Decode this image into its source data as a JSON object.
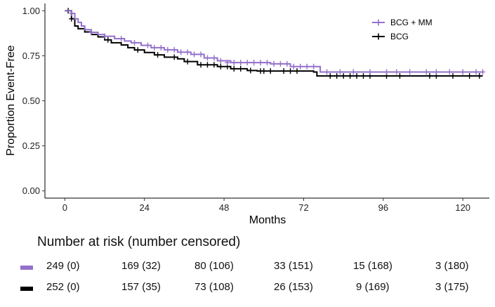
{
  "chart_data": {
    "type": "line",
    "subtype": "kaplan-meier",
    "ylabel": "Proportion Event-Free",
    "xlabel": "Months",
    "xlim": [
      -6,
      128
    ],
    "ylim": [
      -0.04,
      1.04
    ],
    "xticks": [
      0,
      24,
      48,
      72,
      96,
      120
    ],
    "xtick_labels": [
      "0",
      "24",
      "48",
      "72",
      "96",
      "120"
    ],
    "yticks": [
      0,
      0.25,
      0.5,
      0.75,
      1
    ],
    "ytick_labels": [
      "0.00",
      "0.25",
      "0.50",
      "0.75",
      "1.00"
    ],
    "grid": false,
    "legend_position": "top-right",
    "series": [
      {
        "name": "BCG + MM",
        "color": "#9370cc",
        "steps": [
          [
            0,
            1.0
          ],
          [
            1.5,
            1.0
          ],
          [
            2,
            0.985
          ],
          [
            3,
            0.955
          ],
          [
            4,
            0.935
          ],
          [
            5,
            0.915
          ],
          [
            6,
            0.895
          ],
          [
            8,
            0.88
          ],
          [
            10,
            0.868
          ],
          [
            12,
            0.858
          ],
          [
            15,
            0.845
          ],
          [
            18,
            0.832
          ],
          [
            20,
            0.822
          ],
          [
            23,
            0.808
          ],
          [
            26,
            0.795
          ],
          [
            30,
            0.783
          ],
          [
            34,
            0.77
          ],
          [
            38,
            0.758
          ],
          [
            42,
            0.738
          ],
          [
            46,
            0.722
          ],
          [
            50,
            0.712
          ],
          [
            62,
            0.705
          ],
          [
            68,
            0.69
          ],
          [
            77,
            0.66
          ],
          [
            126,
            0.66
          ]
        ],
        "censored": [
          [
            2,
            0.985
          ],
          [
            8,
            0.88
          ],
          [
            12,
            0.858
          ],
          [
            17,
            0.845
          ],
          [
            21,
            0.822
          ],
          [
            25,
            0.808
          ],
          [
            27,
            0.795
          ],
          [
            29,
            0.795
          ],
          [
            31,
            0.783
          ],
          [
            33,
            0.783
          ],
          [
            35,
            0.77
          ],
          [
            37,
            0.77
          ],
          [
            39,
            0.758
          ],
          [
            41,
            0.758
          ],
          [
            43,
            0.738
          ],
          [
            45,
            0.738
          ],
          [
            47,
            0.722
          ],
          [
            49,
            0.712
          ],
          [
            51,
            0.712
          ],
          [
            53,
            0.712
          ],
          [
            55,
            0.712
          ],
          [
            57,
            0.712
          ],
          [
            59,
            0.712
          ],
          [
            61,
            0.712
          ],
          [
            63,
            0.705
          ],
          [
            65,
            0.705
          ],
          [
            67,
            0.705
          ],
          [
            69,
            0.69
          ],
          [
            71,
            0.69
          ],
          [
            73,
            0.69
          ],
          [
            75,
            0.69
          ],
          [
            79,
            0.66
          ],
          [
            83,
            0.66
          ],
          [
            87,
            0.66
          ],
          [
            92,
            0.66
          ],
          [
            97,
            0.66
          ],
          [
            100,
            0.66
          ],
          [
            104,
            0.66
          ],
          [
            109,
            0.66
          ],
          [
            112,
            0.66
          ],
          [
            116,
            0.66
          ],
          [
            120,
            0.66
          ],
          [
            124,
            0.66
          ],
          [
            126,
            0.66
          ]
        ]
      },
      {
        "name": "BCG",
        "color": "#000000",
        "steps": [
          [
            0,
            1.0
          ],
          [
            1.5,
            1.0
          ],
          [
            2,
            0.955
          ],
          [
            3,
            0.915
          ],
          [
            4,
            0.9
          ],
          [
            6,
            0.882
          ],
          [
            8,
            0.868
          ],
          [
            10,
            0.855
          ],
          [
            12,
            0.838
          ],
          [
            14,
            0.822
          ],
          [
            17,
            0.81
          ],
          [
            19,
            0.795
          ],
          [
            21,
            0.782
          ],
          [
            24,
            0.768
          ],
          [
            27,
            0.755
          ],
          [
            30,
            0.742
          ],
          [
            34,
            0.733
          ],
          [
            36,
            0.718
          ],
          [
            40,
            0.7
          ],
          [
            46,
            0.69
          ],
          [
            50,
            0.678
          ],
          [
            55,
            0.668
          ],
          [
            58,
            0.665
          ],
          [
            64,
            0.665
          ],
          [
            72,
            0.665
          ],
          [
            75,
            0.66
          ],
          [
            76,
            0.638
          ],
          [
            126,
            0.638
          ]
        ],
        "censored": [
          [
            1,
            1.0
          ],
          [
            2,
            0.955
          ],
          [
            13,
            0.838
          ],
          [
            22,
            0.782
          ],
          [
            28,
            0.755
          ],
          [
            33,
            0.742
          ],
          [
            37,
            0.718
          ],
          [
            41,
            0.7
          ],
          [
            43,
            0.7
          ],
          [
            45,
            0.7
          ],
          [
            47,
            0.69
          ],
          [
            49,
            0.69
          ],
          [
            51,
            0.678
          ],
          [
            53,
            0.678
          ],
          [
            56,
            0.668
          ],
          [
            59,
            0.665
          ],
          [
            60,
            0.665
          ],
          [
            62,
            0.665
          ],
          [
            66,
            0.665
          ],
          [
            68,
            0.665
          ],
          [
            70,
            0.665
          ],
          [
            80,
            0.638
          ],
          [
            82,
            0.638
          ],
          [
            84,
            0.638
          ],
          [
            86,
            0.638
          ],
          [
            88,
            0.638
          ],
          [
            90,
            0.638
          ],
          [
            92,
            0.638
          ],
          [
            97,
            0.638
          ],
          [
            101,
            0.638
          ],
          [
            110,
            0.638
          ],
          [
            112,
            0.638
          ],
          [
            117,
            0.638
          ],
          [
            122,
            0.638
          ],
          [
            125,
            0.638
          ]
        ]
      }
    ],
    "risk_table": {
      "title": "Number at risk (number censored)",
      "times": [
        0,
        24,
        48,
        72,
        96,
        120
      ],
      "rows": [
        {
          "name": "BCG + MM",
          "color": "#9370cc",
          "values": [
            "249 (0)",
            "169 (32)",
            "80 (106)",
            "33 (151)",
            "15 (168)",
            "3 (180)"
          ]
        },
        {
          "name": "BCG",
          "color": "#000000",
          "values": [
            "252 (0)",
            "157 (35)",
            "73 (108)",
            "26 (153)",
            "9 (169)",
            "3 (175)"
          ]
        }
      ]
    }
  }
}
